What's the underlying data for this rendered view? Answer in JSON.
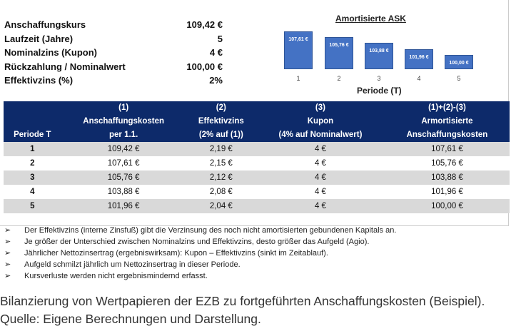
{
  "params": [
    {
      "label": "Anschaffungskurs",
      "value": "109,42 €"
    },
    {
      "label": "Laufzeit (Jahre)",
      "value": "5"
    },
    {
      "label": "Nominalzins (Kupon)",
      "value": "4 €"
    },
    {
      "label": "Rückzahlung / Nominalwert",
      "value": "100,00 €"
    },
    {
      "label": "Effektivzins (%)",
      "value": "2%"
    }
  ],
  "chart_data": {
    "type": "bar",
    "title": "Amortisierte ASK",
    "xlabel": "Periode (T)",
    "categories": [
      "1",
      "2",
      "3",
      "4",
      "5"
    ],
    "values": [
      107.61,
      105.76,
      103.88,
      101.96,
      100.0
    ],
    "labels": [
      "107,61 €",
      "105,76 €",
      "103,88 €",
      "101,96 €",
      "100,00 €"
    ],
    "color": "#4472c4"
  },
  "table": {
    "headers": [
      [
        "",
        "Periode T"
      ],
      [
        "(1)",
        "Anschaffungskosten",
        "per 1.1."
      ],
      [
        "(2)",
        "Effektivzins",
        "(2% auf (1))"
      ],
      [
        "(3)",
        "Kupon",
        "(4% auf Nominalwert)"
      ],
      [
        "(1)+(2)-(3)",
        "Armortisierte",
        "Anschaffungskosten"
      ]
    ],
    "rows": [
      [
        "1",
        "109,42 €",
        "2,19 €",
        "4 €",
        "107,61 €"
      ],
      [
        "2",
        "107,61 €",
        "2,15 €",
        "4 €",
        "105,76 €"
      ],
      [
        "3",
        "105,76 €",
        "2,12 €",
        "4 €",
        "103,88 €"
      ],
      [
        "4",
        "103,88 €",
        "2,08 €",
        "4 €",
        "101,96 €"
      ],
      [
        "5",
        "101,96 €",
        "2,04 €",
        "4 €",
        "100,00 €"
      ]
    ]
  },
  "bullets": [
    "Der Effektivzins (interne Zinsfuß) gibt die Verzinsung des noch nicht amortisierten gebundenen Kapitals an.",
    "Je größer der Unterschied zwischen Nominalzins und Effektivzins, desto größer das Aufgeld (Agio).",
    "Jährlicher Nettozinsertrag (ergebniswirksam): Kupon – Effektivzins (sinkt im Zeitablauf).",
    "Aufgeld schmilzt jährlich um Nettozinsertrag in dieser Periode.",
    "Kursverluste werden nicht ergebnismindernd erfasst."
  ],
  "bullet_symbol": "➢",
  "caption": "Bilanzierung von Wertpapieren der EZB zu fortgeführten Anschaffungskosten (Beispiel). Quelle: Eigene Berechnungen und Darstellung."
}
